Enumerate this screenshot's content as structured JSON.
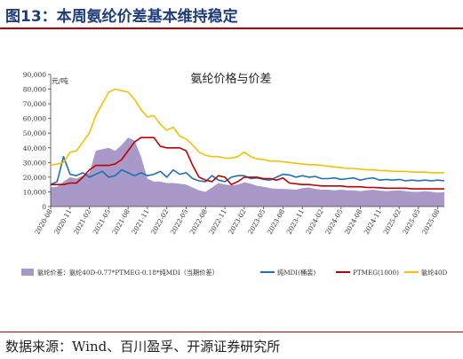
{
  "figure": {
    "title": "图13：本周氨纶价差基本维持稳定",
    "source": "数据来源：Wind、百川盈孚、开源证券研究所"
  },
  "colors": {
    "title": "#1f3d7a",
    "rule": "#c00000",
    "spread": "#a899c8",
    "mdi": "#1f6fb5",
    "ptmeg": "#c00000",
    "spandex": "#f5c000"
  },
  "chart_data": {
    "type": "line",
    "title": "氨纶价格与价差",
    "ylabel": "元/吨",
    "xlabel": "",
    "ylim": [
      0,
      90000
    ],
    "yticks": [
      0,
      10000,
      20000,
      30000,
      40000,
      50000,
      60000,
      70000,
      80000,
      90000
    ],
    "ytick_labels": [
      "0",
      "10,000",
      "20,000",
      "30,000",
      "40,000",
      "50,000",
      "60,000",
      "70,000",
      "80,000",
      "90,000"
    ],
    "xtick_labels": [
      "2020-08",
      "2020-11",
      "2021-02",
      "2021-05",
      "2021-08",
      "2021-11",
      "2022-02",
      "2022-05",
      "2022-08",
      "2022-11",
      "2023-02",
      "2023-05",
      "2023-08",
      "2023-11",
      "2024-02",
      "2024-05",
      "2024-08",
      "2024-11",
      "2025-02",
      "2025-05",
      "2025-08"
    ],
    "grid": false,
    "legend": "bottom",
    "x": [
      "2020-08",
      "2020-09",
      "2020-10",
      "2020-11",
      "2020-12",
      "2021-01",
      "2021-02",
      "2021-03",
      "2021-04",
      "2021-05",
      "2021-06",
      "2021-07",
      "2021-08",
      "2021-09",
      "2021-10",
      "2021-11",
      "2021-12",
      "2022-01",
      "2022-02",
      "2022-03",
      "2022-04",
      "2022-05",
      "2022-06",
      "2022-07",
      "2022-08",
      "2022-09",
      "2022-10",
      "2022-11",
      "2022-12",
      "2023-01",
      "2023-02",
      "2023-03",
      "2023-04",
      "2023-05",
      "2023-06",
      "2023-07",
      "2023-08",
      "2023-09",
      "2023-10",
      "2023-11",
      "2023-12",
      "2024-01",
      "2024-02",
      "2024-03",
      "2024-04",
      "2024-05",
      "2024-06",
      "2024-07",
      "2024-08",
      "2024-09",
      "2024-10",
      "2024-11",
      "2024-12",
      "2025-01",
      "2025-02",
      "2025-03",
      "2025-04",
      "2025-05",
      "2025-06",
      "2025-07",
      "2025-08",
      "2025-09"
    ],
    "series": [
      {
        "name": "氨纶价差：氨纶40D-0.77*PTMEG-0.18*纯MDI（当期价差）",
        "kind": "area",
        "color_key": "spread",
        "values": [
          13000,
          13500,
          17000,
          20000,
          19000,
          21000,
          23000,
          38000,
          39000,
          40000,
          38000,
          42000,
          47000,
          45000,
          34000,
          19000,
          17000,
          17000,
          16000,
          16000,
          15500,
          15000,
          13000,
          11000,
          10000,
          13000,
          16000,
          15000,
          14500,
          15000,
          16500,
          15500,
          14000,
          13500,
          12500,
          12000,
          12000,
          11800,
          11500,
          12500,
          13000,
          12000,
          11500,
          11500,
          11000,
          11500,
          11000,
          11000,
          10500,
          11000,
          11500,
          10800,
          10500,
          10800,
          11000,
          10500,
          10000,
          10000,
          10500,
          10000,
          9500,
          9800
        ]
      },
      {
        "name": "纯MDI(桶装)",
        "kind": "line",
        "color_key": "mdi",
        "values": [
          15000,
          17000,
          34000,
          22000,
          21000,
          23000,
          20000,
          22000,
          24000,
          20000,
          21000,
          25000,
          23000,
          21000,
          23000,
          21000,
          22000,
          24000,
          20000,
          25000,
          22000,
          23000,
          19000,
          17500,
          17000,
          21000,
          18000,
          17000,
          20000,
          21000,
          21000,
          19000,
          19500,
          18500,
          18000,
          20000,
          22000,
          21500,
          20000,
          21000,
          20000,
          20500,
          19000,
          19000,
          19500,
          18500,
          19000,
          19500,
          18000,
          19000,
          19500,
          18000,
          18500,
          18000,
          18500,
          17500,
          18000,
          17500,
          18000,
          17500,
          18000,
          17500
        ]
      },
      {
        "name": "PTMEG(1000)",
        "kind": "line",
        "color_key": "ptmeg",
        "values": [
          15000,
          15000,
          15000,
          16000,
          16000,
          20000,
          25000,
          28000,
          28000,
          28000,
          29000,
          32000,
          38000,
          44000,
          47000,
          47000,
          47000,
          41000,
          40000,
          40000,
          40000,
          38000,
          28000,
          20000,
          18000,
          17000,
          21000,
          20000,
          15000,
          17000,
          20000,
          20000,
          20000,
          19000,
          19000,
          18000,
          19500,
          16000,
          15500,
          15000,
          15000,
          14500,
          14000,
          14000,
          14000,
          14000,
          13500,
          13500,
          13500,
          13000,
          13000,
          12800,
          12500,
          12500,
          12500,
          12500,
          12000,
          12000,
          12000,
          12000,
          12000,
          12000
        ]
      },
      {
        "name": "氨纶40D",
        "kind": "line",
        "color_key": "spandex",
        "values": [
          28000,
          29000,
          30000,
          37000,
          38000,
          44000,
          50000,
          62000,
          70000,
          78000,
          80000,
          79000,
          78000,
          73000,
          66000,
          61000,
          62000,
          56000,
          52000,
          54000,
          48000,
          46000,
          42000,
          37000,
          35000,
          34000,
          34000,
          33000,
          33000,
          34000,
          37000,
          34000,
          32500,
          32000,
          31000,
          31000,
          30500,
          30000,
          29500,
          29000,
          28500,
          28500,
          28000,
          27500,
          27000,
          26500,
          26000,
          26000,
          25500,
          25000,
          25000,
          24500,
          24500,
          24000,
          24000,
          24000,
          23500,
          23500,
          23500,
          23000,
          23000,
          23000
        ]
      }
    ],
    "legend_entries": [
      {
        "label": "氨纶价差：氨纶40D-0.77*PTMEG-0.18*纯MDI（当期价差）",
        "color_key": "spread",
        "marker": "area"
      },
      {
        "label": "纯MDI(桶装)",
        "color_key": "mdi",
        "marker": "line"
      },
      {
        "label": "PTMEG(1000)",
        "color_key": "ptmeg",
        "marker": "line"
      },
      {
        "label": "氨纶40D",
        "color_key": "spandex",
        "marker": "line"
      }
    ]
  }
}
